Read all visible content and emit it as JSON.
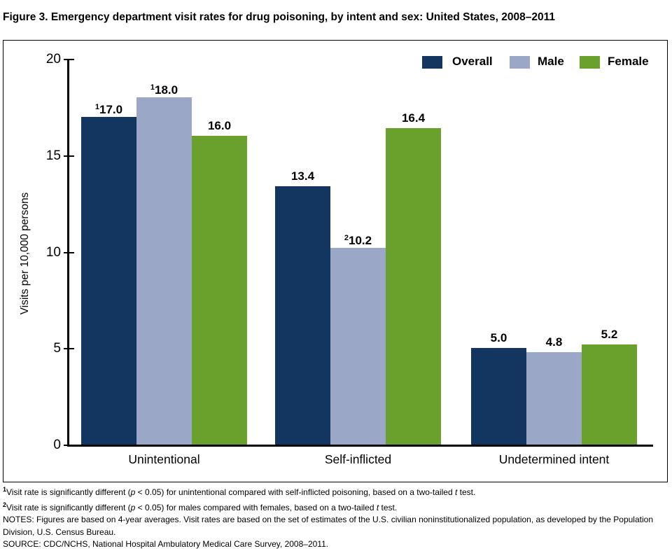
{
  "title": "Figure 3. Emergency department visit rates for drug poisoning, by intent and sex: United States, 2008–2011",
  "chart_data": {
    "type": "bar",
    "title": "Figure 3. Emergency department visit rates for drug poisoning, by intent and sex: United States, 2008–2011",
    "categories": [
      "Unintentional",
      "Self-inflicted",
      "Undetermined intent"
    ],
    "series": [
      {
        "name": "Overall",
        "color": "#12365f",
        "values": [
          17.0,
          13.4,
          5.0
        ],
        "value_labels": [
          {
            "sup": "1",
            "text": "17.0"
          },
          {
            "text": "13.4"
          },
          {
            "text": "5.0"
          }
        ]
      },
      {
        "name": "Male",
        "color": "#9aa7c7",
        "values": [
          18.0,
          10.2,
          4.8
        ],
        "value_labels": [
          {
            "sup": "1",
            "text": "18.0"
          },
          {
            "sup": "2",
            "text": "10.2"
          },
          {
            "text": "4.8"
          }
        ]
      },
      {
        "name": "Female",
        "color": "#6aa02c",
        "values": [
          16.0,
          16.4,
          5.2
        ],
        "value_labels": [
          {
            "text": "16.0"
          },
          {
            "text": "16.4"
          },
          {
            "text": "5.2"
          }
        ]
      }
    ],
    "xlabel": "",
    "ylabel": "Visits per 10,000 persons",
    "ylim": [
      0,
      20
    ],
    "yticks": [
      0,
      5,
      10,
      15,
      20
    ],
    "grid": false,
    "legend_position": "top-right"
  },
  "footnotes": [
    {
      "sup": "1",
      "segments": [
        {
          "text": "Visit rate is significantly different ("
        },
        {
          "text": "p",
          "italic": true
        },
        {
          "text": " < 0.05) for unintentional compared with self-inflicted poisoning, based on a two-tailed "
        },
        {
          "text": "t",
          "italic": true
        },
        {
          "text": " test."
        }
      ]
    },
    {
      "sup": "2",
      "segments": [
        {
          "text": "Visit rate is significantly different ("
        },
        {
          "text": "p",
          "italic": true
        },
        {
          "text": " < 0.05) for males compared with females, based on a two-tailed "
        },
        {
          "text": "t",
          "italic": true
        },
        {
          "text": " test."
        }
      ]
    },
    {
      "segments": [
        {
          "text": "NOTES: Figures are based on 4-year averages. Visit rates are based on the set of estimates of the U.S. civilian noninstitutionalized population, as developed by the Population Division, U.S. Census Bureau."
        }
      ]
    },
    {
      "segments": [
        {
          "text": "SOURCE: CDC/NCHS, National Hospital Ambulatory Medical Care Survey, 2008–2011."
        }
      ]
    }
  ]
}
